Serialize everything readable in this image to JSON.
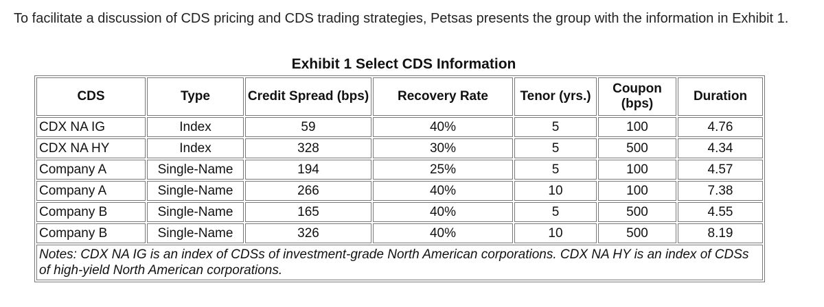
{
  "intro": "To facilitate a discussion of CDS pricing and CDS trading strategies, Petsas presents the group with the information in Exhibit 1.",
  "caption": "Exhibit 1 Select CDS Information",
  "headers": {
    "cds": "CDS",
    "type": "Type",
    "credit_spread": "Credit Spread (bps)",
    "recovery_rate": "Recovery Rate",
    "tenor": "Tenor (yrs.)",
    "coupon": "Coupon (bps)",
    "duration": "Duration"
  },
  "rows": [
    {
      "cds": "CDX NA IG",
      "type": "Index",
      "spread": "59",
      "recovery": "40%",
      "tenor": "5",
      "coupon": "100",
      "duration": "4.76"
    },
    {
      "cds": "CDX NA HY",
      "type": "Index",
      "spread": "328",
      "recovery": "30%",
      "tenor": "5",
      "coupon": "500",
      "duration": "4.34"
    },
    {
      "cds": "Company A",
      "type": "Single-Name",
      "spread": "194",
      "recovery": "25%",
      "tenor": "5",
      "coupon": "100",
      "duration": "4.57"
    },
    {
      "cds": "Company A",
      "type": "Single-Name",
      "spread": "266",
      "recovery": "40%",
      "tenor": "10",
      "coupon": "100",
      "duration": "7.38"
    },
    {
      "cds": "Company B",
      "type": "Single-Name",
      "spread": "165",
      "recovery": "40%",
      "tenor": "5",
      "coupon": "500",
      "duration": "4.55"
    },
    {
      "cds": "Company B",
      "type": "Single-Name",
      "spread": "326",
      "recovery": "40%",
      "tenor": "10",
      "coupon": "500",
      "duration": "8.19"
    }
  ],
  "notes": "Notes: CDX NA IG is an index of CDSs of investment-grade North American corporations. CDX NA HY is an index of CDSs of high-yield North American corporations."
}
